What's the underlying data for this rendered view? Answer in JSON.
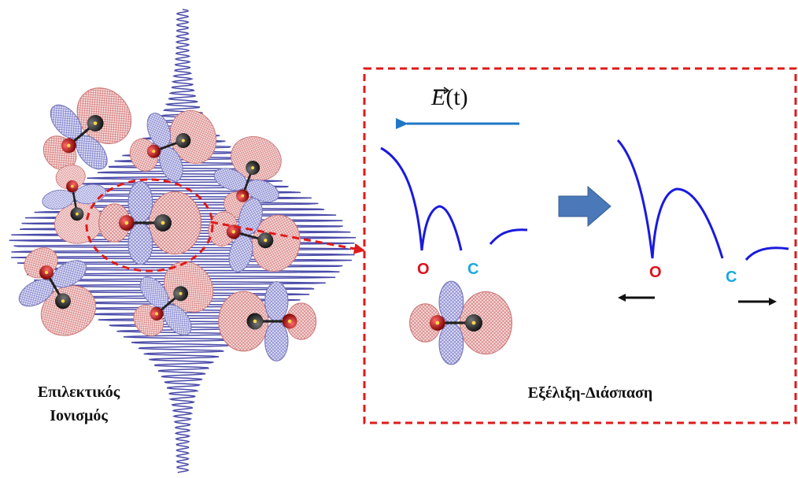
{
  "left_caption": {
    "line1": "Επιλεκτικός",
    "line2": "Ιονισμός"
  },
  "right_caption": "Εξέλιξη-Διάσπαση",
  "field_label": {
    "symbol": "E",
    "argument": "(t)"
  },
  "atoms": {
    "before": {
      "left": "O",
      "right": "C"
    },
    "after": {
      "left": "O",
      "right": "C"
    }
  },
  "colors": {
    "oxygen_label": "#e0101a",
    "carbon_label": "#1aa9e0",
    "potential_curve": "#1a1adf",
    "field_arrow": "#1f77c4",
    "process_arrow": "#4a78b8",
    "frame": "#e01a1a",
    "pulse": "#2a2a9a",
    "lobe_pink": "#e8a0a0",
    "lobe_blue": "#8a8ad0"
  },
  "icons": {
    "laser_pulse": "laser-pulse-icon",
    "molecule": "co-molecule-icon",
    "arrow": "arrow-icon"
  }
}
